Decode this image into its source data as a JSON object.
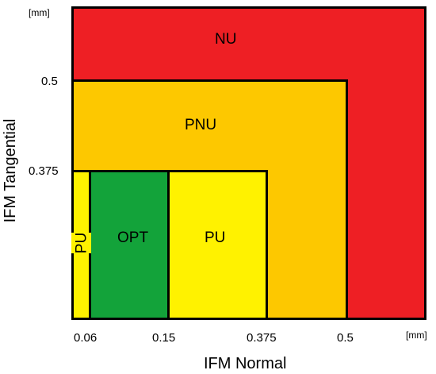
{
  "zones": {
    "nu": "NU",
    "pnu": "PNU",
    "pu_left": "PU",
    "opt": "OPT",
    "pu_right": "PU"
  },
  "colors": {
    "nu": "#ee1f24",
    "pnu": "#fdc800",
    "pu": "#fff200",
    "opt": "#13a33a",
    "border": "#000000"
  },
  "axes": {
    "x_title": "IFM Normal",
    "y_title": "IFM Tangential",
    "x_unit": "[mm]",
    "y_unit": "[mm]",
    "x_ticks": [
      "0.06",
      "0.15",
      "0.375",
      "0.5"
    ],
    "y_ticks": [
      "0.5",
      "0.375"
    ]
  }
}
